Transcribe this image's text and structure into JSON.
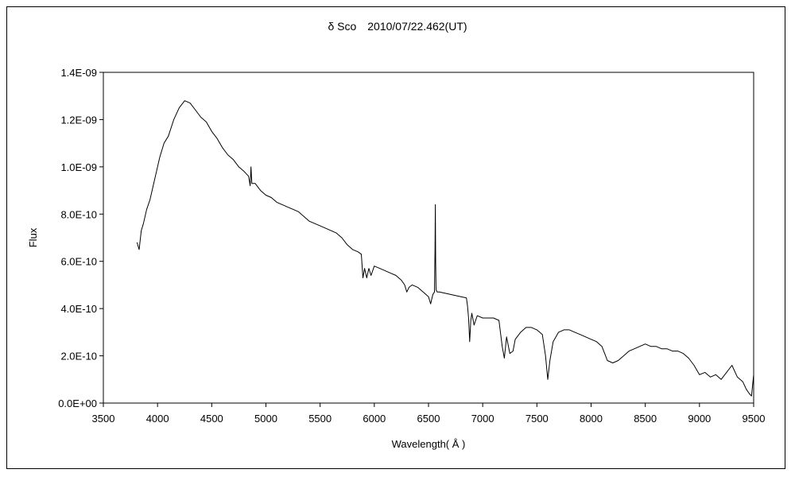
{
  "chart_data": {
    "type": "line",
    "title": "δ Sco　2010/07/22.462(UT)",
    "xlabel": "Wavelength( Å )",
    "ylabel": "Flux",
    "xlim": [
      3500,
      9500
    ],
    "ylim": [
      0,
      1.4e-09
    ],
    "xticks": [
      3500,
      4000,
      4500,
      5000,
      5500,
      6000,
      6500,
      7000,
      7500,
      8000,
      8500,
      9000,
      9500
    ],
    "xtick_labels": [
      "3500",
      "4000",
      "4500",
      "5000",
      "5500",
      "6000",
      "6500",
      "7000",
      "7500",
      "8000",
      "8500",
      "9000",
      "9500"
    ],
    "yticks": [
      0,
      2e-10,
      4e-10,
      6e-10,
      8e-10,
      1e-09,
      1.2e-09,
      1.4e-09
    ],
    "ytick_labels": [
      "0.0E+00",
      "2.0E-10",
      "4.0E-10",
      "6.0E-10",
      "8.0E-10",
      "1.0E-09",
      "1.2E-09",
      "1.4E-09"
    ],
    "grid": false,
    "legend": "none",
    "series": [
      {
        "color": "#000000",
        "x": [
          3810,
          3830,
          3850,
          3870,
          3900,
          3930,
          3960,
          3990,
          4020,
          4060,
          4100,
          4150,
          4200,
          4250,
          4300,
          4350,
          4400,
          4450,
          4500,
          4550,
          4600,
          4650,
          4700,
          4750,
          4800,
          4840,
          4855,
          4862,
          4870,
          4900,
          4950,
          5000,
          5050,
          5100,
          5150,
          5200,
          5250,
          5300,
          5350,
          5400,
          5450,
          5500,
          5550,
          5600,
          5650,
          5700,
          5750,
          5800,
          5850,
          5880,
          5895,
          5910,
          5930,
          5950,
          5970,
          6000,
          6050,
          6100,
          6150,
          6200,
          6250,
          6280,
          6300,
          6320,
          6350,
          6400,
          6450,
          6500,
          6520,
          6540,
          6555,
          6560,
          6563,
          6566,
          6570,
          6580,
          6600,
          6650,
          6700,
          6750,
          6800,
          6850,
          6860,
          6870,
          6880,
          6890,
          6900,
          6920,
          6950,
          7000,
          7050,
          7100,
          7150,
          7180,
          7200,
          7220,
          7250,
          7280,
          7300,
          7350,
          7400,
          7450,
          7500,
          7550,
          7580,
          7600,
          7620,
          7650,
          7700,
          7750,
          7800,
          7850,
          7900,
          7950,
          8000,
          8050,
          8100,
          8150,
          8200,
          8250,
          8300,
          8350,
          8400,
          8450,
          8500,
          8550,
          8600,
          8650,
          8700,
          8750,
          8800,
          8850,
          8900,
          8950,
          9000,
          9050,
          9100,
          9150,
          9200,
          9250,
          9300,
          9350,
          9400,
          9430,
          9460,
          9480,
          9500
        ],
        "y": [
          6.8e-10,
          6.5e-10,
          7.3e-10,
          7.6e-10,
          8.2e-10,
          8.6e-10,
          9.2e-10,
          9.8e-10,
          1.04e-09,
          1.1e-09,
          1.13e-09,
          1.2e-09,
          1.25e-09,
          1.28e-09,
          1.27e-09,
          1.24e-09,
          1.21e-09,
          1.19e-09,
          1.15e-09,
          1.12e-09,
          1.08e-09,
          1.05e-09,
          1.03e-09,
          1e-09,
          9.8e-10,
          9.6e-10,
          9.2e-10,
          1e-09,
          9.3e-10,
          9.3e-10,
          9e-10,
          8.8e-10,
          8.7e-10,
          8.5e-10,
          8.4e-10,
          8.3e-10,
          8.2e-10,
          8.1e-10,
          7.9e-10,
          7.7e-10,
          7.6e-10,
          7.5e-10,
          7.4e-10,
          7.3e-10,
          7.2e-10,
          7e-10,
          6.7e-10,
          6.5e-10,
          6.4e-10,
          6.3e-10,
          5.3e-10,
          5.7e-10,
          5.3e-10,
          5.7e-10,
          5.4e-10,
          5.8e-10,
          5.7e-10,
          5.6e-10,
          5.5e-10,
          5.4e-10,
          5.2e-10,
          5e-10,
          4.7e-10,
          4.9e-10,
          5e-10,
          4.9e-10,
          4.7e-10,
          4.5e-10,
          4.2e-10,
          4.6e-10,
          4.7e-10,
          6.5e-10,
          8.4e-10,
          6e-10,
          4.8e-10,
          4.7e-10,
          4.7e-10,
          4.65e-10,
          4.6e-10,
          4.55e-10,
          4.5e-10,
          4.45e-10,
          4.1e-10,
          3.6e-10,
          2.6e-10,
          3.5e-10,
          3.8e-10,
          3.3e-10,
          3.7e-10,
          3.6e-10,
          3.6e-10,
          3.6e-10,
          3.5e-10,
          2.4e-10,
          1.9e-10,
          2.8e-10,
          2.1e-10,
          2.2e-10,
          2.7e-10,
          3e-10,
          3.2e-10,
          3.2e-10,
          3.1e-10,
          2.9e-10,
          2e-10,
          1e-10,
          1.8e-10,
          2.6e-10,
          3e-10,
          3.1e-10,
          3.1e-10,
          3e-10,
          2.9e-10,
          2.8e-10,
          2.7e-10,
          2.6e-10,
          2.4e-10,
          1.8e-10,
          1.7e-10,
          1.8e-10,
          2e-10,
          2.2e-10,
          2.3e-10,
          2.4e-10,
          2.5e-10,
          2.4e-10,
          2.4e-10,
          2.3e-10,
          2.3e-10,
          2.2e-10,
          2.2e-10,
          2.1e-10,
          1.9e-10,
          1.6e-10,
          1.2e-10,
          1.3e-10,
          1.1e-10,
          1.2e-10,
          1e-10,
          1.3e-10,
          1.6e-10,
          1.1e-10,
          9e-11,
          6e-11,
          4e-11,
          3e-11,
          1.2e-10
        ]
      }
    ]
  }
}
